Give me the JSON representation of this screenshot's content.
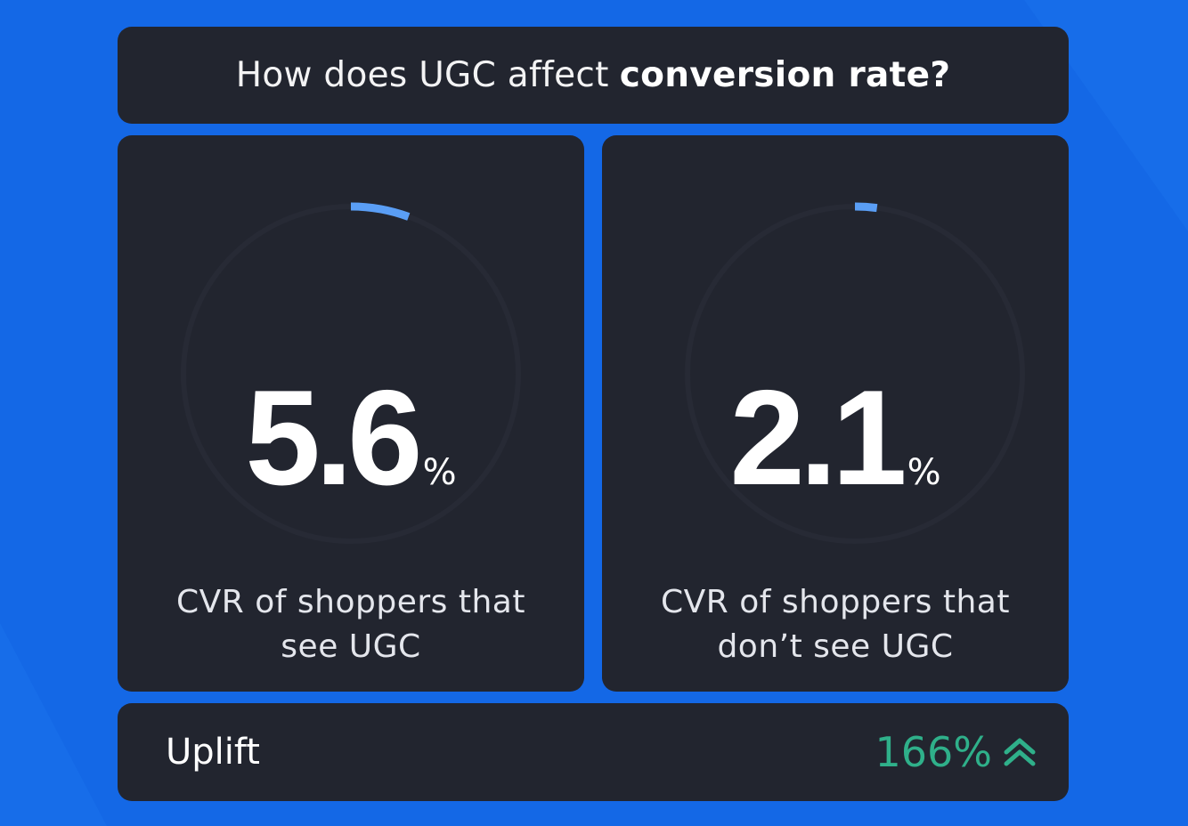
{
  "header": {
    "title_light": "How does UGC affect",
    "title_bold": "conversion rate?"
  },
  "chart_data": {
    "type": "gauge",
    "max": 100,
    "series": [
      {
        "value": 5.6,
        "value_label": "5.6",
        "unit": "%",
        "caption": "CVR of shoppers that see UGC"
      },
      {
        "value": 2.1,
        "value_label": "2.1",
        "unit": "%",
        "caption": "CVR of shoppers that don’t see UGC"
      }
    ],
    "colors": {
      "arc": "#5a9ef5",
      "track": "#272a35"
    }
  },
  "uplift": {
    "label": "Uplift",
    "value": "166%",
    "icon": "double-chevron-up-icon",
    "color": "#2fb08a"
  },
  "colors": {
    "background": "#1468e6",
    "card": "#22252f"
  }
}
